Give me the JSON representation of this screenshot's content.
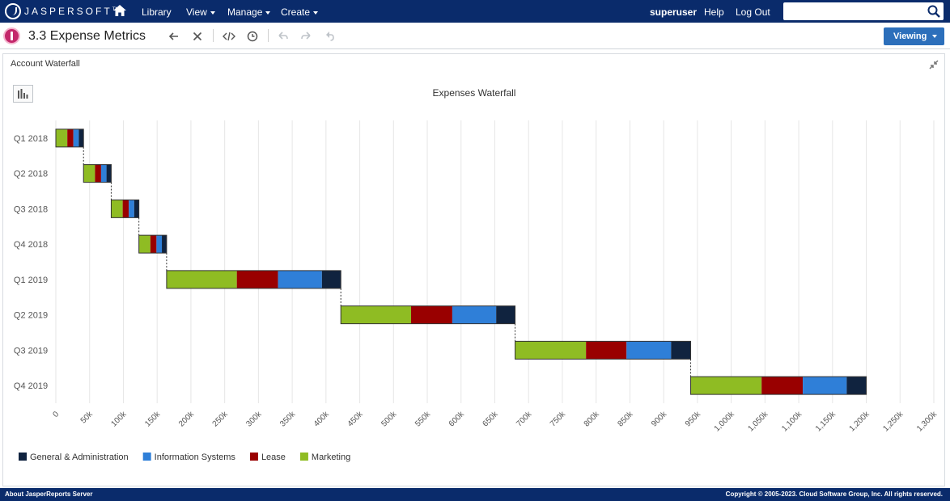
{
  "topnav": {
    "logo_text": "JASPERSOFT",
    "logo_mark": "TM",
    "menu": [
      {
        "label": "Library",
        "caret": false
      },
      {
        "label": "View",
        "caret": true
      },
      {
        "label": "Manage",
        "caret": true
      },
      {
        "label": "Create",
        "caret": true
      }
    ],
    "user": "superuser",
    "help": "Help",
    "logout": "Log Out",
    "search_value": ""
  },
  "report": {
    "title": "3.3 Expense Metrics",
    "mode_button": "Viewing"
  },
  "panel": {
    "title": "Account Waterfall"
  },
  "colors": {
    "general_admin": "#10233f",
    "information_systems": "#2f7fd8",
    "lease": "#990000",
    "marketing": "#8fbc23",
    "nav_bg": "#0a2b6b",
    "accent_button": "#2c6fbb"
  },
  "chart_data": {
    "type": "bar",
    "orientation": "horizontal",
    "stacking": "waterfall",
    "title": "Expenses Waterfall",
    "categories": [
      "Q1 2018",
      "Q2 2018",
      "Q3 2018",
      "Q4 2018",
      "Q1 2019",
      "Q2 2019",
      "Q3 2019",
      "Q4 2019"
    ],
    "xlim": [
      0,
      1300000
    ],
    "x_ticks": [
      0,
      50000,
      100000,
      150000,
      200000,
      250000,
      300000,
      350000,
      400000,
      450000,
      500000,
      550000,
      600000,
      650000,
      700000,
      750000,
      800000,
      850000,
      900000,
      950000,
      1000000,
      1050000,
      1100000,
      1150000,
      1200000,
      1250000,
      1300000
    ],
    "x_tick_labels": [
      "0",
      "50k",
      "100k",
      "150k",
      "200k",
      "250k",
      "300k",
      "350k",
      "400k",
      "450k",
      "500k",
      "550k",
      "600k",
      "650k",
      "700k",
      "750k",
      "800k",
      "850k",
      "900k",
      "950k",
      "1,000k",
      "1,050k",
      "1,100k",
      "1,150k",
      "1,200k",
      "1,250k",
      "1,300k"
    ],
    "grid": true,
    "legend_position": "bottom-left",
    "series": [
      {
        "name": "Marketing",
        "color": "#8fbc23",
        "values": [
          17000,
          17000,
          17000,
          17000,
          104000,
          104000,
          105000,
          105000
        ]
      },
      {
        "name": "Lease",
        "color": "#990000",
        "values": [
          9000,
          9000,
          9000,
          9000,
          61000,
          61000,
          60000,
          61000
        ]
      },
      {
        "name": "Information Systems",
        "color": "#2f7fd8",
        "values": [
          8000,
          8000,
          8000,
          8000,
          65000,
          65000,
          66000,
          65000
        ]
      },
      {
        "name": "General & Administration",
        "color": "#10233f",
        "values": [
          7000,
          7000,
          7000,
          7000,
          28000,
          28000,
          29000,
          29000
        ]
      }
    ],
    "legend_order": [
      "General & Administration",
      "Information Systems",
      "Lease",
      "Marketing"
    ]
  },
  "footer": {
    "left": "About JasperReports Server",
    "right": "Copyright © 2005-2023. Cloud Software Group, Inc. All rights reserved."
  }
}
